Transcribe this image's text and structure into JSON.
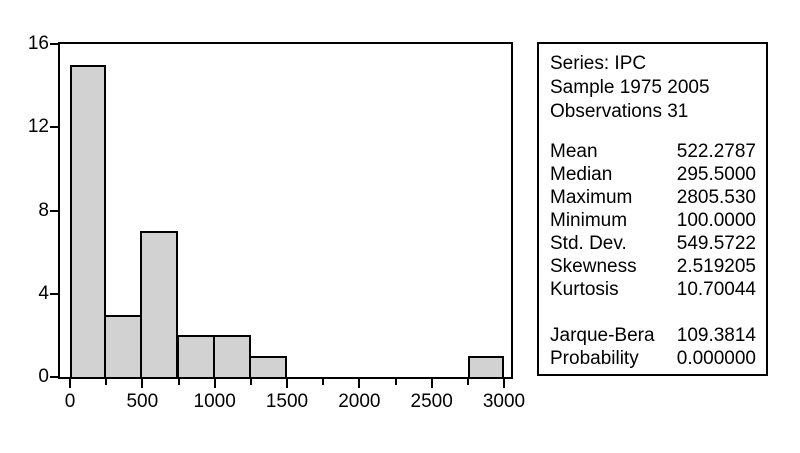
{
  "figure": {
    "background": "#ffffff",
    "bar_fill": "#d2d2d2",
    "line_color": "#000000"
  },
  "chart_data": {
    "type": "bar",
    "subtype": "histogram",
    "title": "",
    "xlabel": "",
    "ylabel": "",
    "xlim": [
      0,
      3000
    ],
    "ylim": [
      0,
      16
    ],
    "bin_width": 250,
    "bins": [
      {
        "start": 0,
        "end": 250,
        "count": 15
      },
      {
        "start": 250,
        "end": 500,
        "count": 3
      },
      {
        "start": 500,
        "end": 750,
        "count": 7
      },
      {
        "start": 750,
        "end": 1000,
        "count": 2
      },
      {
        "start": 1000,
        "end": 1250,
        "count": 2
      },
      {
        "start": 1250,
        "end": 1500,
        "count": 1
      },
      {
        "start": 2750,
        "end": 3000,
        "count": 1
      }
    ],
    "x_major_ticks": [
      0,
      500,
      1000,
      1500,
      2000,
      2500,
      3000
    ],
    "x_minor_ticks": [
      250,
      750,
      1250,
      1750,
      2250,
      2750
    ],
    "y_ticks": [
      0,
      4,
      8,
      12,
      16
    ],
    "grid": false,
    "legend": false
  },
  "stats_panel": {
    "header_lines": [
      "Series: IPC",
      "Sample 1975 2005",
      "Observations 31"
    ],
    "stats": [
      {
        "label": "Mean",
        "value": "522.2787"
      },
      {
        "label": "Median",
        "value": "295.5000"
      },
      {
        "label": "Maximum",
        "value": "2805.530"
      },
      {
        "label": "Minimum",
        "value": "100.0000"
      },
      {
        "label": "Std. Dev.",
        "value": "549.5722"
      },
      {
        "label": "Skewness",
        "value": "2.519205"
      },
      {
        "label": "Kurtosis",
        "value": "10.70044"
      }
    ],
    "tests": [
      {
        "label": "Jarque-Bera",
        "value": "109.3814"
      },
      {
        "label": "Probability",
        "value": "0.000000"
      }
    ]
  }
}
